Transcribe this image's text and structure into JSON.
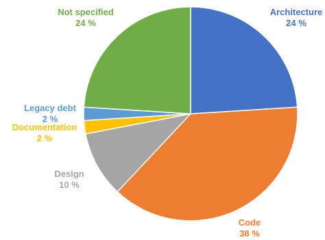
{
  "chart_data": {
    "type": "pie",
    "start": "12 o'clock",
    "direction": "clockwise",
    "slices": [
      {
        "label": "Architecture",
        "value": 24,
        "value_label": "24 %",
        "color": "#4472C4"
      },
      {
        "label": "Code",
        "value": 38,
        "value_label": "38 %",
        "color": "#ED7D31"
      },
      {
        "label": "Design",
        "value": 10,
        "value_label": "10 %",
        "color": "#A5A5A5"
      },
      {
        "label": "Documentation",
        "value": 2,
        "value_label": "2 %",
        "color": "#FFC000"
      },
      {
        "label": "Legacy debt",
        "value": 2,
        "value_label": "2 %",
        "color": "#5B9BD5"
      },
      {
        "label": "Not specified",
        "value": 24,
        "value_label": "24 %",
        "color": "#70AD47"
      }
    ]
  }
}
